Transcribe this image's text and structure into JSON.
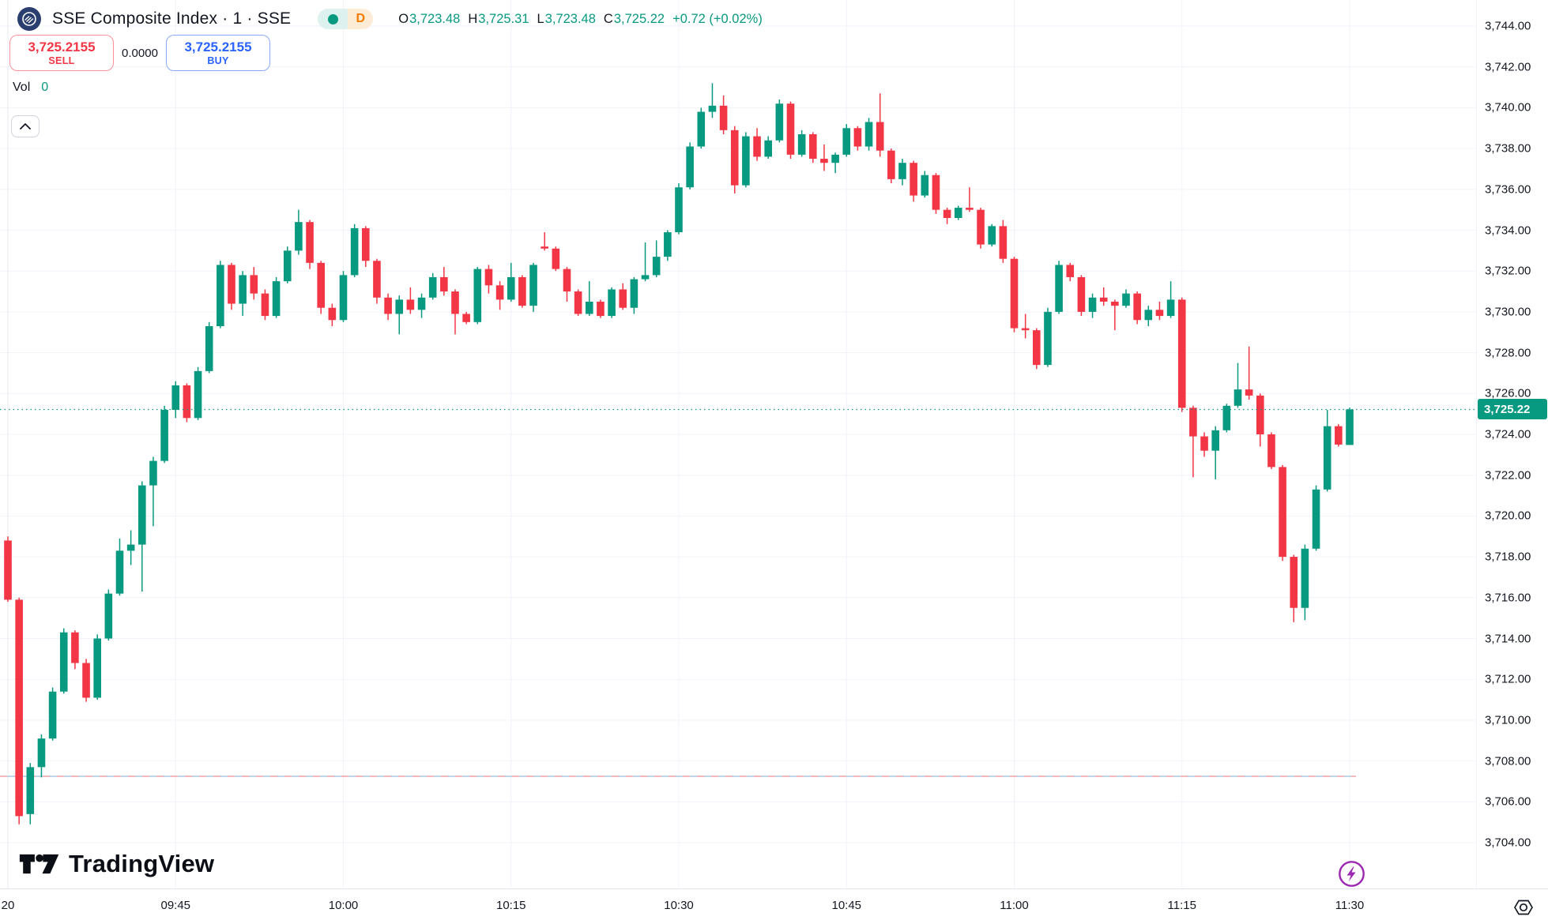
{
  "header": {
    "symbol_title": "SSE Composite Index · 1 · SSE",
    "interval_badge": "D",
    "ohlc": {
      "o_label": "O",
      "o": "3,723.48",
      "h_label": "H",
      "h": "3,725.31",
      "l_label": "L",
      "l": "3,723.48",
      "c_label": "C",
      "c": "3,725.22",
      "change": "+0.72 (+0.02%)"
    }
  },
  "trade_panel": {
    "sell_price": "3,725.2155",
    "sell_label": "SELL",
    "spread": "0.0000",
    "buy_price": "3,725.2155",
    "buy_label": "BUY"
  },
  "volume": {
    "label": "Vol",
    "value": "0"
  },
  "watermark": {
    "brand": "TradingView"
  },
  "colors": {
    "up": "#089981",
    "down": "#f23645",
    "text": "#131722",
    "grid": "#f0f3fa",
    "axis_border": "#e0e3eb",
    "session_line": "#e8eaef",
    "buy_blue": "#2962ff",
    "sell_red": "#f23645",
    "orange": "#f57c00",
    "badge_bg": "#089981",
    "purple": "#9c27b0",
    "level_red": "#f4a0a6",
    "level_blue": "#a9c9e0"
  },
  "chart_data": {
    "type": "candlestick",
    "symbol": "SSE Composite Index",
    "interval": "1-minute",
    "first_bar_time": "09:30",
    "interval_minutes": 1,
    "y_axis": {
      "min": 3704,
      "max": 3744,
      "tick_step": 2
    },
    "price_ticks": [
      {
        "price": 3744,
        "label": "3,744.00"
      },
      {
        "price": 3742,
        "label": "3,742.00"
      },
      {
        "price": 3740,
        "label": "3,740.00"
      },
      {
        "price": 3738,
        "label": "3,738.00"
      },
      {
        "price": 3736,
        "label": "3,736.00"
      },
      {
        "price": 3734,
        "label": "3,734.00"
      },
      {
        "price": 3732,
        "label": "3,732.00"
      },
      {
        "price": 3730,
        "label": "3,730.00"
      },
      {
        "price": 3728,
        "label": "3,728.00"
      },
      {
        "price": 3726,
        "label": "3,726.00"
      },
      {
        "price": 3724,
        "label": "3,724.00"
      },
      {
        "price": 3722,
        "label": "3,722.00"
      },
      {
        "price": 3720,
        "label": "3,720.00"
      },
      {
        "price": 3718,
        "label": "3,718.00"
      },
      {
        "price": 3716,
        "label": "3,716.00"
      },
      {
        "price": 3714,
        "label": "3,714.00"
      },
      {
        "price": 3712,
        "label": "3,712.00"
      },
      {
        "price": 3710,
        "label": "3,710.00"
      },
      {
        "price": 3708,
        "label": "3,708.00"
      },
      {
        "price": 3706,
        "label": "3,706.00"
      },
      {
        "price": 3704,
        "label": "3,704.00"
      }
    ],
    "time_ticks": [
      {
        "bar": 0,
        "label": "20"
      },
      {
        "bar": 15,
        "label": "09:45"
      },
      {
        "bar": 30,
        "label": "10:00"
      },
      {
        "bar": 45,
        "label": "10:15"
      },
      {
        "bar": 60,
        "label": "10:30"
      },
      {
        "bar": 75,
        "label": "10:45"
      },
      {
        "bar": 90,
        "label": "11:00"
      },
      {
        "bar": 105,
        "label": "11:15"
      },
      {
        "bar": 120,
        "label": "11:30"
      }
    ],
    "last_price": {
      "value": 3725.22,
      "label": "3,725.22"
    },
    "low_level": {
      "value": 3707.25
    },
    "candles": [
      [
        3718.8,
        3719.0,
        3715.8,
        3715.9
      ],
      [
        3715.9,
        3716.0,
        3704.9,
        3705.3
      ],
      [
        3705.4,
        3707.9,
        3704.9,
        3707.7
      ],
      [
        3707.7,
        3709.3,
        3707.2,
        3709.1
      ],
      [
        3709.1,
        3711.6,
        3709.0,
        3711.4
      ],
      [
        3711.4,
        3714.5,
        3711.3,
        3714.3
      ],
      [
        3714.3,
        3714.4,
        3712.5,
        3712.8
      ],
      [
        3712.8,
        3713.0,
        3710.9,
        3711.1
      ],
      [
        3711.1,
        3714.2,
        3711.0,
        3714.0
      ],
      [
        3714.0,
        3716.4,
        3713.9,
        3716.2
      ],
      [
        3716.2,
        3718.9,
        3716.1,
        3718.3
      ],
      [
        3718.3,
        3719.3,
        3717.6,
        3718.6
      ],
      [
        3718.6,
        3721.7,
        3716.3,
        3721.5
      ],
      [
        3721.5,
        3722.9,
        3719.5,
        3722.7
      ],
      [
        3722.7,
        3725.4,
        3722.6,
        3725.2
      ],
      [
        3725.2,
        3726.6,
        3724.8,
        3726.4
      ],
      [
        3726.4,
        3726.5,
        3724.6,
        3724.8
      ],
      [
        3724.8,
        3727.3,
        3724.7,
        3727.1
      ],
      [
        3727.1,
        3729.5,
        3727.0,
        3729.3
      ],
      [
        3729.3,
        3732.5,
        3729.2,
        3732.3
      ],
      [
        3732.3,
        3732.4,
        3730.1,
        3730.4
      ],
      [
        3730.4,
        3732.0,
        3729.8,
        3731.8
      ],
      [
        3731.8,
        3732.2,
        3730.6,
        3730.9
      ],
      [
        3730.9,
        3731.1,
        3729.6,
        3729.8
      ],
      [
        3729.8,
        3731.7,
        3729.7,
        3731.5
      ],
      [
        3731.5,
        3733.2,
        3731.4,
        3733.0
      ],
      [
        3733.0,
        3735.0,
        3732.8,
        3734.4
      ],
      [
        3734.4,
        3734.5,
        3732.1,
        3732.4
      ],
      [
        3732.4,
        3732.5,
        3729.9,
        3730.2
      ],
      [
        3730.2,
        3730.4,
        3729.3,
        3729.6
      ],
      [
        3729.6,
        3732.0,
        3729.5,
        3731.8
      ],
      [
        3731.8,
        3734.3,
        3731.7,
        3734.1
      ],
      [
        3734.1,
        3734.2,
        3732.2,
        3732.5
      ],
      [
        3732.5,
        3732.6,
        3730.4,
        3730.7
      ],
      [
        3730.7,
        3730.9,
        3729.6,
        3729.9
      ],
      [
        3729.9,
        3730.8,
        3728.9,
        3730.6
      ],
      [
        3730.6,
        3731.2,
        3729.9,
        3730.1
      ],
      [
        3730.1,
        3730.9,
        3729.7,
        3730.7
      ],
      [
        3730.7,
        3731.9,
        3730.6,
        3731.7
      ],
      [
        3731.7,
        3732.2,
        3730.8,
        3731.0
      ],
      [
        3731.0,
        3731.1,
        3728.9,
        3729.9
      ],
      [
        3729.9,
        3730.0,
        3729.4,
        3729.5
      ],
      [
        3729.5,
        3732.2,
        3729.4,
        3732.1
      ],
      [
        3732.1,
        3732.3,
        3730.9,
        3731.3
      ],
      [
        3731.3,
        3731.5,
        3730.1,
        3730.6
      ],
      [
        3730.6,
        3732.4,
        3730.5,
        3731.7
      ],
      [
        3731.7,
        3731.8,
        3730.2,
        3730.3
      ],
      [
        3730.3,
        3732.4,
        3730.0,
        3732.3
      ],
      [
        3733.2,
        3733.9,
        3733.0,
        3733.1
      ],
      [
        3733.1,
        3733.2,
        3732.0,
        3732.1
      ],
      [
        3732.1,
        3732.2,
        3730.5,
        3731.0
      ],
      [
        3731.0,
        3731.1,
        3729.8,
        3729.9
      ],
      [
        3729.9,
        3731.5,
        3729.8,
        3730.5
      ],
      [
        3730.5,
        3730.6,
        3729.7,
        3729.8
      ],
      [
        3729.8,
        3731.2,
        3729.7,
        3731.1
      ],
      [
        3731.1,
        3731.4,
        3730.1,
        3730.2
      ],
      [
        3730.2,
        3731.7,
        3729.9,
        3731.6
      ],
      [
        3731.6,
        3733.4,
        3731.5,
        3731.8
      ],
      [
        3731.8,
        3733.5,
        3731.7,
        3732.7
      ],
      [
        3732.7,
        3734.0,
        3732.5,
        3733.9
      ],
      [
        3733.9,
        3736.3,
        3733.8,
        3736.1
      ],
      [
        3736.1,
        3738.3,
        3736.0,
        3738.1
      ],
      [
        3738.1,
        3740.0,
        3738.0,
        3739.8
      ],
      [
        3739.8,
        3741.2,
        3739.5,
        3740.1
      ],
      [
        3740.1,
        3740.6,
        3738.7,
        3738.9
      ],
      [
        3738.9,
        3739.1,
        3735.8,
        3736.2
      ],
      [
        3736.2,
        3738.8,
        3736.1,
        3738.6
      ],
      [
        3738.6,
        3739.0,
        3737.4,
        3737.6
      ],
      [
        3737.6,
        3738.6,
        3737.5,
        3738.4
      ],
      [
        3738.4,
        3740.4,
        3738.3,
        3740.2
      ],
      [
        3740.2,
        3740.3,
        3737.5,
        3737.7
      ],
      [
        3737.7,
        3738.9,
        3737.6,
        3738.7
      ],
      [
        3738.7,
        3738.8,
        3737.3,
        3737.5
      ],
      [
        3737.5,
        3738.2,
        3736.9,
        3737.3
      ],
      [
        3737.3,
        3737.8,
        3736.8,
        3737.7
      ],
      [
        3737.7,
        3739.2,
        3737.6,
        3739.0
      ],
      [
        3739.0,
        3739.1,
        3737.9,
        3738.1
      ],
      [
        3738.1,
        3739.5,
        3737.9,
        3739.3
      ],
      [
        3739.3,
        3740.7,
        3737.6,
        3737.9
      ],
      [
        3737.9,
        3738.0,
        3736.3,
        3736.5
      ],
      [
        3736.5,
        3737.5,
        3736.2,
        3737.3
      ],
      [
        3737.3,
        3737.4,
        3735.4,
        3735.7
      ],
      [
        3735.7,
        3736.9,
        3735.6,
        3736.7
      ],
      [
        3736.7,
        3736.8,
        3734.8,
        3735.0
      ],
      [
        3735.0,
        3735.1,
        3734.3,
        3734.6
      ],
      [
        3734.6,
        3735.2,
        3734.5,
        3735.1
      ],
      [
        3735.1,
        3736.1,
        3734.9,
        3735.0
      ],
      [
        3735.0,
        3735.1,
        3733.1,
        3733.3
      ],
      [
        3733.3,
        3734.3,
        3733.2,
        3734.2
      ],
      [
        3734.2,
        3734.5,
        3732.4,
        3732.6
      ],
      [
        3732.6,
        3732.7,
        3729.0,
        3729.2
      ],
      [
        3729.2,
        3729.9,
        3728.7,
        3729.1
      ],
      [
        3729.1,
        3729.2,
        3727.2,
        3727.4
      ],
      [
        3727.4,
        3730.2,
        3727.3,
        3730.0
      ],
      [
        3730.0,
        3732.5,
        3729.9,
        3732.3
      ],
      [
        3732.3,
        3732.4,
        3731.5,
        3731.7
      ],
      [
        3731.7,
        3731.8,
        3729.8,
        3730.0
      ],
      [
        3730.0,
        3730.9,
        3729.7,
        3730.7
      ],
      [
        3730.7,
        3731.2,
        3730.3,
        3730.5
      ],
      [
        3730.5,
        3730.6,
        3729.1,
        3730.3
      ],
      [
        3730.3,
        3731.1,
        3730.2,
        3730.9
      ],
      [
        3730.9,
        3731.0,
        3729.4,
        3729.6
      ],
      [
        3729.6,
        3730.3,
        3729.3,
        3730.1
      ],
      [
        3730.1,
        3730.5,
        3729.6,
        3729.8
      ],
      [
        3729.8,
        3731.5,
        3729.7,
        3730.6
      ],
      [
        3730.6,
        3730.7,
        3725.1,
        3725.3
      ],
      [
        3725.3,
        3725.4,
        3721.9,
        3723.9
      ],
      [
        3723.9,
        3724.1,
        3722.9,
        3723.2
      ],
      [
        3723.2,
        3724.4,
        3721.8,
        3724.2
      ],
      [
        3724.2,
        3725.5,
        3724.1,
        3725.4
      ],
      [
        3725.4,
        3727.5,
        3725.3,
        3726.2
      ],
      [
        3726.2,
        3728.3,
        3725.7,
        3725.9
      ],
      [
        3725.9,
        3726.0,
        3723.4,
        3724.0
      ],
      [
        3724.0,
        3724.1,
        3722.3,
        3722.4
      ],
      [
        3722.4,
        3722.5,
        3717.8,
        3718.0
      ],
      [
        3718.0,
        3718.1,
        3714.8,
        3715.5
      ],
      [
        3715.5,
        3718.6,
        3714.9,
        3718.4
      ],
      [
        3718.4,
        3721.5,
        3718.3,
        3721.3
      ],
      [
        3721.3,
        3725.2,
        3721.2,
        3724.4
      ],
      [
        3724.4,
        3724.5,
        3723.4,
        3723.5
      ],
      [
        3723.48,
        3725.31,
        3723.48,
        3725.22
      ]
    ]
  }
}
